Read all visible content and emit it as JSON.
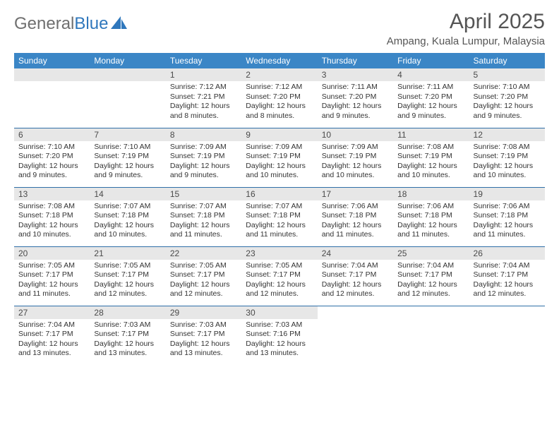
{
  "logo": {
    "part1": "General",
    "part2": "Blue"
  },
  "title": "April 2025",
  "subtitle": "Ampang, Kuala Lumpur, Malaysia",
  "colors": {
    "header_bg": "#3b86c6",
    "header_text": "#ffffff",
    "daynum_bg": "#e7e7e7",
    "row_border": "#2f6fa8",
    "logo_gray": "#6f6f6f",
    "logo_blue": "#2f77bc",
    "text": "#333333"
  },
  "dayHeaders": [
    "Sunday",
    "Monday",
    "Tuesday",
    "Wednesday",
    "Thursday",
    "Friday",
    "Saturday"
  ],
  "startOffset": 2,
  "daysInMonth": 30,
  "days": {
    "1": {
      "sunrise": "7:12 AM",
      "sunset": "7:21 PM",
      "daylight": "12 hours and 8 minutes."
    },
    "2": {
      "sunrise": "7:12 AM",
      "sunset": "7:20 PM",
      "daylight": "12 hours and 8 minutes."
    },
    "3": {
      "sunrise": "7:11 AM",
      "sunset": "7:20 PM",
      "daylight": "12 hours and 9 minutes."
    },
    "4": {
      "sunrise": "7:11 AM",
      "sunset": "7:20 PM",
      "daylight": "12 hours and 9 minutes."
    },
    "5": {
      "sunrise": "7:10 AM",
      "sunset": "7:20 PM",
      "daylight": "12 hours and 9 minutes."
    },
    "6": {
      "sunrise": "7:10 AM",
      "sunset": "7:20 PM",
      "daylight": "12 hours and 9 minutes."
    },
    "7": {
      "sunrise": "7:10 AM",
      "sunset": "7:19 PM",
      "daylight": "12 hours and 9 minutes."
    },
    "8": {
      "sunrise": "7:09 AM",
      "sunset": "7:19 PM",
      "daylight": "12 hours and 9 minutes."
    },
    "9": {
      "sunrise": "7:09 AM",
      "sunset": "7:19 PM",
      "daylight": "12 hours and 10 minutes."
    },
    "10": {
      "sunrise": "7:09 AM",
      "sunset": "7:19 PM",
      "daylight": "12 hours and 10 minutes."
    },
    "11": {
      "sunrise": "7:08 AM",
      "sunset": "7:19 PM",
      "daylight": "12 hours and 10 minutes."
    },
    "12": {
      "sunrise": "7:08 AM",
      "sunset": "7:19 PM",
      "daylight": "12 hours and 10 minutes."
    },
    "13": {
      "sunrise": "7:08 AM",
      "sunset": "7:18 PM",
      "daylight": "12 hours and 10 minutes."
    },
    "14": {
      "sunrise": "7:07 AM",
      "sunset": "7:18 PM",
      "daylight": "12 hours and 10 minutes."
    },
    "15": {
      "sunrise": "7:07 AM",
      "sunset": "7:18 PM",
      "daylight": "12 hours and 11 minutes."
    },
    "16": {
      "sunrise": "7:07 AM",
      "sunset": "7:18 PM",
      "daylight": "12 hours and 11 minutes."
    },
    "17": {
      "sunrise": "7:06 AM",
      "sunset": "7:18 PM",
      "daylight": "12 hours and 11 minutes."
    },
    "18": {
      "sunrise": "7:06 AM",
      "sunset": "7:18 PM",
      "daylight": "12 hours and 11 minutes."
    },
    "19": {
      "sunrise": "7:06 AM",
      "sunset": "7:18 PM",
      "daylight": "12 hours and 11 minutes."
    },
    "20": {
      "sunrise": "7:05 AM",
      "sunset": "7:17 PM",
      "daylight": "12 hours and 11 minutes."
    },
    "21": {
      "sunrise": "7:05 AM",
      "sunset": "7:17 PM",
      "daylight": "12 hours and 12 minutes."
    },
    "22": {
      "sunrise": "7:05 AM",
      "sunset": "7:17 PM",
      "daylight": "12 hours and 12 minutes."
    },
    "23": {
      "sunrise": "7:05 AM",
      "sunset": "7:17 PM",
      "daylight": "12 hours and 12 minutes."
    },
    "24": {
      "sunrise": "7:04 AM",
      "sunset": "7:17 PM",
      "daylight": "12 hours and 12 minutes."
    },
    "25": {
      "sunrise": "7:04 AM",
      "sunset": "7:17 PM",
      "daylight": "12 hours and 12 minutes."
    },
    "26": {
      "sunrise": "7:04 AM",
      "sunset": "7:17 PM",
      "daylight": "12 hours and 12 minutes."
    },
    "27": {
      "sunrise": "7:04 AM",
      "sunset": "7:17 PM",
      "daylight": "12 hours and 13 minutes."
    },
    "28": {
      "sunrise": "7:03 AM",
      "sunset": "7:17 PM",
      "daylight": "12 hours and 13 minutes."
    },
    "29": {
      "sunrise": "7:03 AM",
      "sunset": "7:17 PM",
      "daylight": "12 hours and 13 minutes."
    },
    "30": {
      "sunrise": "7:03 AM",
      "sunset": "7:16 PM",
      "daylight": "12 hours and 13 minutes."
    }
  },
  "labels": {
    "sunrise": "Sunrise: ",
    "sunset": "Sunset: ",
    "daylight": "Daylight: "
  }
}
